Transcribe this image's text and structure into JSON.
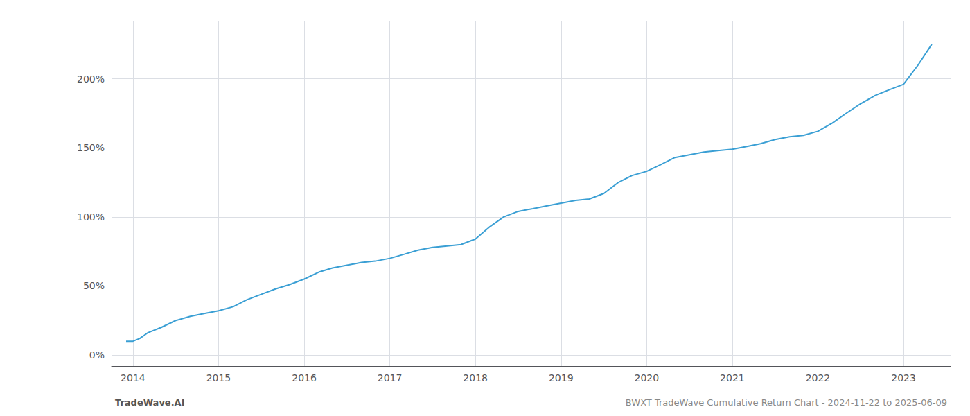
{
  "chart_data": {
    "type": "line",
    "title": "BWXT TradeWave Cumulative Return Chart - 2024-11-22 to 2025-06-09",
    "annotations": [
      "TradeWave.AI"
    ],
    "color": "#3a9fd4",
    "grid": true,
    "x": [
      2013.92,
      2014.0,
      2014.08,
      2014.17,
      2014.33,
      2014.5,
      2014.67,
      2014.83,
      2015.0,
      2015.17,
      2015.33,
      2015.5,
      2015.67,
      2015.83,
      2016.0,
      2016.17,
      2016.33,
      2016.5,
      2016.67,
      2016.83,
      2017.0,
      2017.17,
      2017.33,
      2017.5,
      2017.67,
      2017.83,
      2018.0,
      2018.17,
      2018.33,
      2018.5,
      2018.67,
      2018.83,
      2019.0,
      2019.17,
      2019.33,
      2019.5,
      2019.67,
      2019.83,
      2020.0,
      2020.17,
      2020.33,
      2020.5,
      2020.67,
      2020.83,
      2021.0,
      2021.17,
      2021.33,
      2021.5,
      2021.67,
      2021.83,
      2022.0,
      2022.17,
      2022.33,
      2022.5,
      2022.67,
      2022.83,
      2023.0,
      2023.17,
      2023.33
    ],
    "values": [
      10,
      10,
      12,
      16,
      20,
      25,
      28,
      30,
      32,
      35,
      40,
      44,
      48,
      51,
      55,
      60,
      63,
      65,
      67,
      68,
      70,
      73,
      76,
      78,
      79,
      80,
      84,
      93,
      100,
      104,
      106,
      108,
      110,
      112,
      113,
      117,
      125,
      130,
      133,
      138,
      143,
      145,
      147,
      148,
      149,
      151,
      153,
      156,
      158,
      159,
      162,
      168,
      175,
      182,
      188,
      192,
      196,
      210,
      225
    ],
    "xlim": [
      2013.75,
      2023.55
    ],
    "xticks": [
      2014,
      2015,
      2016,
      2017,
      2018,
      2019,
      2020,
      2021,
      2022,
      2023
    ],
    "ylim": [
      -8,
      242
    ],
    "yticks": [
      {
        "value": 0,
        "label": "0%"
      },
      {
        "value": 50,
        "label": "50%"
      },
      {
        "value": 100,
        "label": "100%"
      },
      {
        "value": 150,
        "label": "150%"
      },
      {
        "value": 200,
        "label": "200%"
      }
    ]
  }
}
